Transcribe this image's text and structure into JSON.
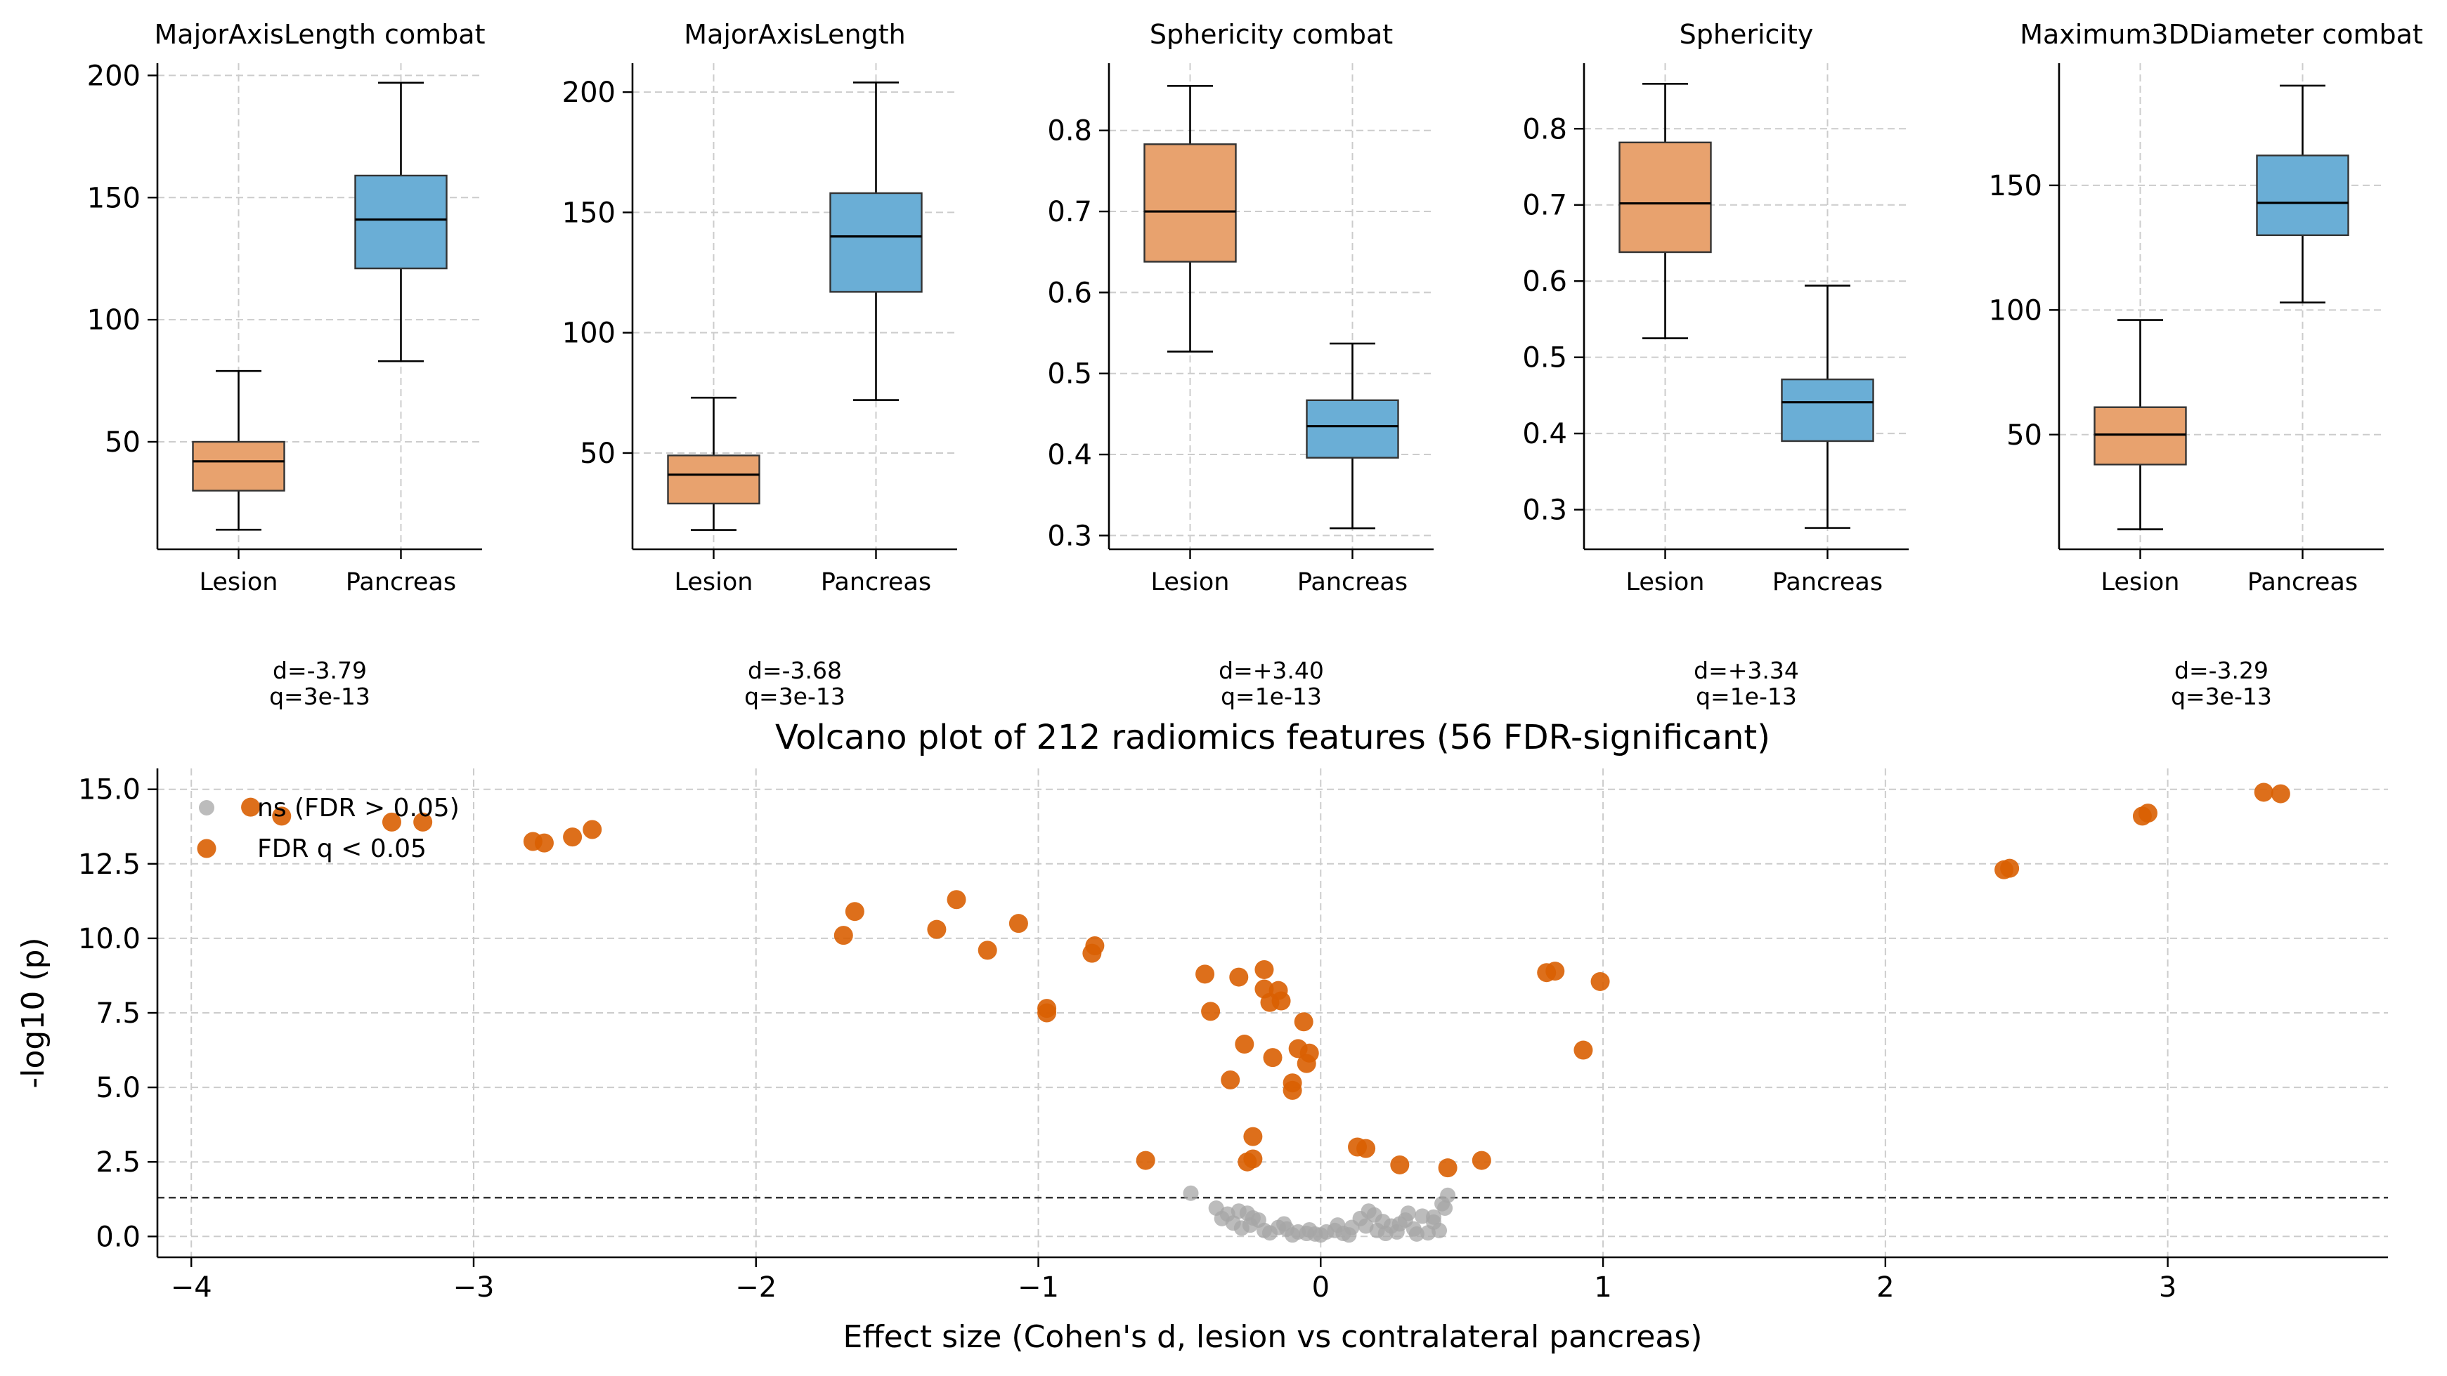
{
  "colors": {
    "lesion": "#E8A26E",
    "pancreas": "#6AAED6",
    "significant": "#D95F02",
    "nonsignificant": "#A6A6A6",
    "grid": "#CCCCCC",
    "threshold": "#333333"
  },
  "chart_data": [
    {
      "type": "box",
      "title": "MajorAxisLength  combat",
      "categories": [
        "Lesion",
        "Pancreas"
      ],
      "yticks": [
        50,
        100,
        150,
        200
      ],
      "ylim": [
        6,
        205
      ],
      "boxes": [
        {
          "whisker_low": 14,
          "q1": 30,
          "median": 42,
          "q3": 50,
          "whisker_high": 79
        },
        {
          "whisker_low": 83,
          "q1": 121,
          "median": 141,
          "q3": 159,
          "whisker_high": 197
        }
      ],
      "stats": {
        "d": "d=-3.79",
        "q": "q=3e-13"
      }
    },
    {
      "type": "box",
      "title": "MajorAxisLength",
      "categories": [
        "Lesion",
        "Pancreas"
      ],
      "yticks": [
        50,
        100,
        150,
        200
      ],
      "ylim": [
        10,
        212
      ],
      "boxes": [
        {
          "whisker_low": 18,
          "q1": 29,
          "median": 41,
          "q3": 49,
          "whisker_high": 73
        },
        {
          "whisker_low": 72,
          "q1": 117,
          "median": 140,
          "q3": 158,
          "whisker_high": 204
        }
      ],
      "stats": {
        "d": "d=-3.68",
        "q": "q=3e-13"
      }
    },
    {
      "type": "box",
      "title": "Sphericity  combat",
      "categories": [
        "Lesion",
        "Pancreas"
      ],
      "yticks": [
        0.3,
        0.4,
        0.5,
        0.6,
        0.7,
        0.8
      ],
      "ylim": [
        0.283,
        0.883
      ],
      "boxes": [
        {
          "whisker_low": 0.527,
          "q1": 0.638,
          "median": 0.7,
          "q3": 0.783,
          "whisker_high": 0.855
        },
        {
          "whisker_low": 0.309,
          "q1": 0.396,
          "median": 0.435,
          "q3": 0.467,
          "whisker_high": 0.537
        }
      ],
      "stats": {
        "d": "d=+3.40",
        "q": "q=1e-13"
      }
    },
    {
      "type": "box",
      "title": "Sphericity",
      "categories": [
        "Lesion",
        "Pancreas"
      ],
      "yticks": [
        0.3,
        0.4,
        0.5,
        0.6,
        0.7,
        0.8
      ],
      "ylim": [
        0.248,
        0.886
      ],
      "boxes": [
        {
          "whisker_low": 0.525,
          "q1": 0.638,
          "median": 0.702,
          "q3": 0.782,
          "whisker_high": 0.859
        },
        {
          "whisker_low": 0.276,
          "q1": 0.39,
          "median": 0.441,
          "q3": 0.471,
          "whisker_high": 0.594
        }
      ],
      "stats": {
        "d": "d=+3.34",
        "q": "q=1e-13"
      }
    },
    {
      "type": "box",
      "title": "Maximum3DDiameter  combat",
      "categories": [
        "Lesion",
        "Pancreas"
      ],
      "yticks": [
        50,
        100,
        150
      ],
      "ylim": [
        4,
        199
      ],
      "boxes": [
        {
          "whisker_low": 12,
          "q1": 38,
          "median": 50,
          "q3": 61,
          "whisker_high": 96
        },
        {
          "whisker_low": 103,
          "q1": 130,
          "median": 143,
          "q3": 162,
          "whisker_high": 190
        }
      ],
      "stats": {
        "d": "d=-3.29",
        "q": "q=3e-13"
      }
    },
    {
      "type": "scatter",
      "title": "Volcano plot of 212 radiomics features  (56 FDR-significant)",
      "xlabel": "Effect size (Cohen's d, lesion vs contralateral pancreas)",
      "ylabel": "-log10 (p)",
      "xlim": [
        -4.12,
        3.78
      ],
      "ylim": [
        -0.7,
        15.7
      ],
      "xticks": [
        -4,
        -3,
        -2,
        -1,
        0,
        1,
        2,
        3
      ],
      "yticks": [
        0.0,
        2.5,
        5.0,
        7.5,
        10.0,
        12.5,
        15.0
      ],
      "ytick_labels": [
        "0.0",
        "2.5",
        "5.0",
        "7.5",
        "10.0",
        "12.5",
        "15.0"
      ],
      "threshold_y": 1.3,
      "legend": [
        "ns (FDR > 0.05)",
        "FDR q < 0.05"
      ],
      "legend_position": "upper-left",
      "series": [
        {
          "name": "ns (FDR > 0.05)",
          "points": [
            [
              -0.46,
              1.45
            ],
            [
              -0.37,
              0.95
            ],
            [
              -0.33,
              0.75
            ],
            [
              -0.29,
              0.85
            ],
            [
              -0.26,
              0.78
            ],
            [
              -0.31,
              0.45
            ],
            [
              -0.25,
              0.38
            ],
            [
              -0.2,
              0.2
            ],
            [
              -0.15,
              0.3
            ],
            [
              -0.12,
              0.25
            ],
            [
              -0.08,
              0.15
            ],
            [
              -0.05,
              0.1
            ],
            [
              -0.02,
              0.08
            ],
            [
              0.0,
              0.05
            ],
            [
              0.02,
              0.15
            ],
            [
              0.05,
              0.2
            ],
            [
              0.08,
              0.1
            ],
            [
              0.11,
              0.3
            ],
            [
              0.14,
              0.6
            ],
            [
              0.17,
              0.85
            ],
            [
              0.19,
              0.72
            ],
            [
              0.22,
              0.5
            ],
            [
              0.25,
              0.35
            ],
            [
              0.27,
              0.15
            ],
            [
              0.3,
              0.55
            ],
            [
              0.33,
              0.25
            ],
            [
              0.36,
              0.68
            ],
            [
              0.38,
              0.12
            ],
            [
              0.4,
              0.48
            ],
            [
              0.42,
              0.2
            ],
            [
              0.44,
              0.95
            ],
            [
              0.45,
              1.38
            ],
            [
              0.43,
              1.1
            ],
            [
              -0.28,
              0.28
            ],
            [
              -0.22,
              0.55
            ],
            [
              -0.18,
              0.12
            ],
            [
              -0.1,
              0.05
            ],
            [
              0.1,
              0.05
            ],
            [
              0.2,
              0.2
            ],
            [
              0.34,
              0.08
            ],
            [
              0.28,
              0.42
            ],
            [
              -0.35,
              0.6
            ],
            [
              0.16,
              0.35
            ],
            [
              0.23,
              0.1
            ],
            [
              -0.13,
              0.42
            ],
            [
              0.06,
              0.38
            ],
            [
              -0.04,
              0.22
            ],
            [
              0.31,
              0.78
            ],
            [
              0.4,
              0.65
            ],
            [
              -0.24,
              0.62
            ]
          ]
        },
        {
          "name": "FDR q < 0.05",
          "points": [
            [
              -3.79,
              14.4
            ],
            [
              -3.68,
              14.1
            ],
            [
              -3.29,
              13.9
            ],
            [
              -3.18,
              13.9
            ],
            [
              -2.79,
              13.25
            ],
            [
              -2.75,
              13.2
            ],
            [
              -2.65,
              13.4
            ],
            [
              -2.58,
              13.65
            ],
            [
              -1.69,
              10.1
            ],
            [
              -1.65,
              10.9
            ],
            [
              -1.36,
              10.3
            ],
            [
              -1.29,
              11.3
            ],
            [
              -1.18,
              9.6
            ],
            [
              -1.07,
              10.5
            ],
            [
              -0.97,
              7.65
            ],
            [
              -0.97,
              7.5
            ],
            [
              -0.81,
              9.5
            ],
            [
              -0.8,
              9.75
            ],
            [
              -0.62,
              2.55
            ],
            [
              -0.41,
              8.8
            ],
            [
              -0.39,
              7.55
            ],
            [
              -0.32,
              5.25
            ],
            [
              -0.29,
              8.7
            ],
            [
              -0.27,
              6.45
            ],
            [
              -0.26,
              2.5
            ],
            [
              -0.24,
              2.6
            ],
            [
              -0.24,
              3.35
            ],
            [
              -0.2,
              8.95
            ],
            [
              -0.2,
              8.3
            ],
            [
              -0.18,
              7.85
            ],
            [
              -0.17,
              6.0
            ],
            [
              -0.15,
              8.25
            ],
            [
              -0.14,
              7.9
            ],
            [
              -0.1,
              5.15
            ],
            [
              -0.1,
              4.9
            ],
            [
              -0.08,
              6.3
            ],
            [
              -0.06,
              7.2
            ],
            [
              -0.05,
              5.8
            ],
            [
              -0.04,
              6.15
            ],
            [
              0.13,
              3.0
            ],
            [
              0.16,
              2.95
            ],
            [
              0.28,
              2.4
            ],
            [
              0.45,
              2.3
            ],
            [
              0.57,
              2.55
            ],
            [
              0.8,
              8.85
            ],
            [
              0.83,
              8.9
            ],
            [
              0.93,
              6.25
            ],
            [
              0.99,
              8.55
            ],
            [
              2.42,
              12.3
            ],
            [
              2.44,
              12.35
            ],
            [
              2.91,
              14.1
            ],
            [
              2.93,
              14.2
            ],
            [
              3.34,
              14.9
            ],
            [
              3.4,
              14.85
            ]
          ]
        }
      ]
    }
  ]
}
